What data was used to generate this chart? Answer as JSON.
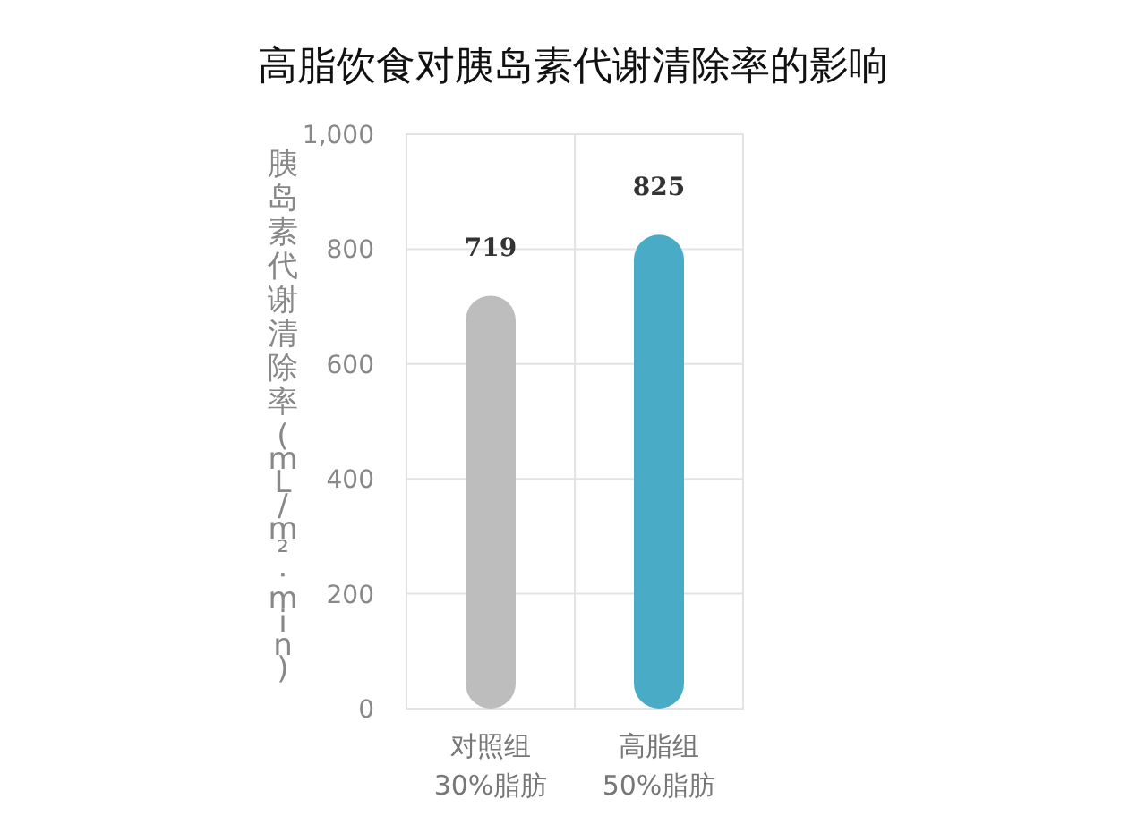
{
  "chart_data": {
    "type": "bar",
    "title": "高脂饮食对胰岛素代谢清除率的影响",
    "ylabel": "胰岛素代谢清除率(mL/m²·min)",
    "categories": [
      "对照组\n30%脂肪",
      "高脂组\n50%脂肪"
    ],
    "values": [
      719,
      825
    ],
    "colors": [
      "#bdbdbd",
      "#4aabc6"
    ],
    "ylim": [
      0,
      1000
    ],
    "yticks": [
      0,
      200,
      400,
      600,
      800,
      {
        "value": 1000,
        "label": "1,000"
      }
    ],
    "grid": "y",
    "data_labels": true
  }
}
